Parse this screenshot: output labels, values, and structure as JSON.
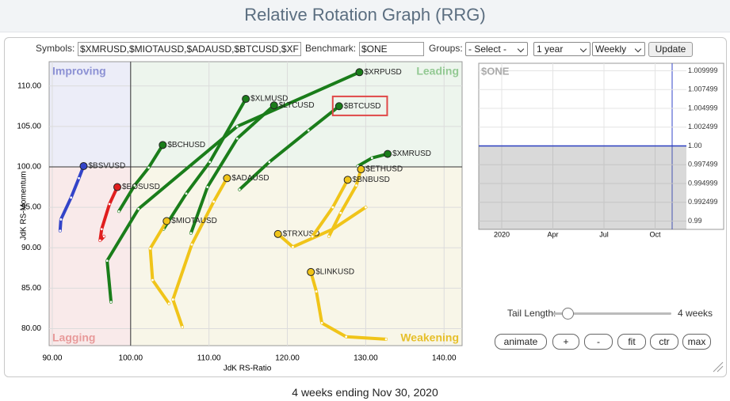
{
  "title": "Relative Rotation Graph (RRG)",
  "controls": {
    "symbols_label": "Symbols:",
    "symbols_value": "$XMRUSD,$MIOTAUSD,$ADAUSD,$BTCUSD,$XF",
    "benchmark_label": "Benchmark:",
    "benchmark_value": "$ONE",
    "groups_label": "Groups:",
    "groups_select": "- Select -",
    "period_select": "1 year",
    "frequency_select": "Weekly",
    "update_button": "Update",
    "tail_length_label": "Tail Length:",
    "tail_length_value": "4 weeks",
    "buttons": [
      "animate",
      "+",
      "-",
      "fit",
      "ctr",
      "max"
    ]
  },
  "chart_data": [
    {
      "type": "rrg",
      "x_label": "JdK RS-Ratio",
      "y_label": "JdK RS-Momentum",
      "xlim": [
        89.6,
        142.3
      ],
      "ylim": [
        77.9,
        113.0
      ],
      "center": [
        100,
        100
      ],
      "grid": true,
      "xticks": [
        {
          "value": 90,
          "label": "90.00"
        },
        {
          "value": 100,
          "label": "100.00"
        },
        {
          "value": 110,
          "label": "110.00"
        },
        {
          "value": 120,
          "label": "120.00"
        },
        {
          "value": 130,
          "label": "130.00"
        },
        {
          "value": 140,
          "label": "140.00"
        }
      ],
      "yticks": [
        {
          "value": 80,
          "label": "80.00"
        },
        {
          "value": 85,
          "label": "85.00"
        },
        {
          "value": 90,
          "label": "90.00"
        },
        {
          "value": 95,
          "label": "95.00"
        },
        {
          "value": 100,
          "label": "100.00"
        },
        {
          "value": 105,
          "label": "105.00"
        },
        {
          "value": 110,
          "label": "110.00"
        }
      ],
      "quadrants": [
        "Improving",
        "Leading",
        "Lagging",
        "Weakening"
      ],
      "quadrant_colors": [
        "#ecedf8",
        "#edf5ed",
        "#f9eaea",
        "#f8f6e8"
      ],
      "quadrant_label_colors": [
        "#8c91d4",
        "#93c993",
        "#e89a9a",
        "#e6bf2a"
      ],
      "series": [
        {
          "name": "$XRPUSD",
          "color": "#1a7d1a",
          "x": [
            97.5,
            97.0,
            101.0,
            113.6,
            129.2
          ],
          "values": [
            83.3,
            88.4,
            94.8,
            105.0,
            111.7
          ]
        },
        {
          "name": "$XLMUSD",
          "color": "#1a7d1a",
          "x": [
            104.2,
            107.1,
            110.1,
            114.7
          ],
          "values": [
            92.3,
            96.7,
            100.6,
            108.4
          ]
        },
        {
          "name": "$LTCUSD",
          "color": "#1a7d1a",
          "x": [
            107.7,
            109.8,
            113.6,
            118.3
          ],
          "values": [
            91.8,
            97.5,
            103.5,
            107.6
          ]
        },
        {
          "name": "$BTCUSD",
          "color": "#1a7d1a",
          "x": [
            113.9,
            117.7,
            122.7,
            126.6
          ],
          "values": [
            97.2,
            100.6,
            104.5,
            107.5
          ]
        },
        {
          "name": "$XMRUSD",
          "color": "#1a7d1a",
          "x": [
            129.0,
            130.8,
            132.8
          ],
          "values": [
            100.1,
            101.1,
            101.6
          ]
        },
        {
          "name": "$BCHUSD",
          "color": "#1a7d1a",
          "x": [
            98.5,
            100.5,
            102.3,
            104.1
          ],
          "values": [
            94.5,
            97.7,
            99.9,
            102.7
          ]
        },
        {
          "name": "$BSVUSD",
          "color": "#3344c8",
          "x": [
            91.0,
            91.1,
            92.4,
            93.4,
            94.0
          ],
          "values": [
            92.1,
            93.5,
            96.2,
            98.6,
            100.1
          ]
        },
        {
          "name": "$EOSUSD",
          "color": "#e01e1e",
          "x": [
            96.6,
            96.1,
            96.3,
            97.3,
            98.3
          ],
          "values": [
            91.4,
            90.9,
            92.3,
            95.4,
            97.5
          ]
        },
        {
          "name": "$ADAUSD",
          "color": "#f0c419",
          "x": [
            106.6,
            105.4,
            107.8,
            110.6,
            112.3
          ],
          "values": [
            80.2,
            83.6,
            90.4,
            95.7,
            98.6
          ]
        },
        {
          "name": "$MIOTAUSD",
          "color": "#f0c419",
          "x": [
            104.9,
            102.8,
            102.5,
            104.6
          ],
          "values": [
            83.1,
            86.0,
            89.9,
            93.3
          ]
        },
        {
          "name": "$TRXUSD",
          "color": "#f0c419",
          "x": [
            130.0,
            125.8,
            120.7,
            118.8
          ],
          "values": [
            95.0,
            92.3,
            90.1,
            91.7
          ]
        },
        {
          "name": "$LINKUSD",
          "color": "#f0c419",
          "x": [
            132.6,
            127.5,
            124.4,
            123.7,
            123.0
          ],
          "values": [
            78.7,
            79.0,
            80.7,
            84.6,
            87.0
          ]
        },
        {
          "name": "$ETHUSD",
          "color": "#f0c419",
          "x": [
            125.3,
            126.8,
            128.8,
            129.4
          ],
          "values": [
            91.4,
            94.3,
            97.7,
            99.7
          ]
        },
        {
          "name": "$BNBUSD",
          "color": "#f0c419",
          "x": [
            123.2,
            125.8,
            127.7
          ],
          "values": [
            91.4,
            95.0,
            98.4
          ]
        }
      ]
    },
    {
      "type": "line",
      "title": "$ONE",
      "categories": [
        "2020",
        "Apr",
        "Jul",
        "Oct"
      ],
      "series": [
        {
          "name": "$ONE",
          "color": "#2b3fc0",
          "values": [
            1.0,
            1.0,
            1.0,
            1.0
          ]
        }
      ],
      "ylim": [
        0.9889,
        1.011
      ],
      "yticks": [
        {
          "value": 0.99,
          "label": "0.99"
        },
        {
          "value": 0.9924999,
          "label": "0.992499"
        },
        {
          "value": 0.9949999,
          "label": "0.994999"
        },
        {
          "value": 0.9974999,
          "label": "0.997499"
        },
        {
          "value": 1.0,
          "label": "1.00"
        },
        {
          "value": 1.0024999,
          "label": "1.002499"
        },
        {
          "value": 1.0049999,
          "label": "1.004999"
        },
        {
          "value": 1.0074999,
          "label": "1.007499"
        },
        {
          "value": 1.0099999,
          "label": "1.009999"
        }
      ],
      "grid": true
    }
  ],
  "footer": "4 weeks ending Nov 30, 2020"
}
